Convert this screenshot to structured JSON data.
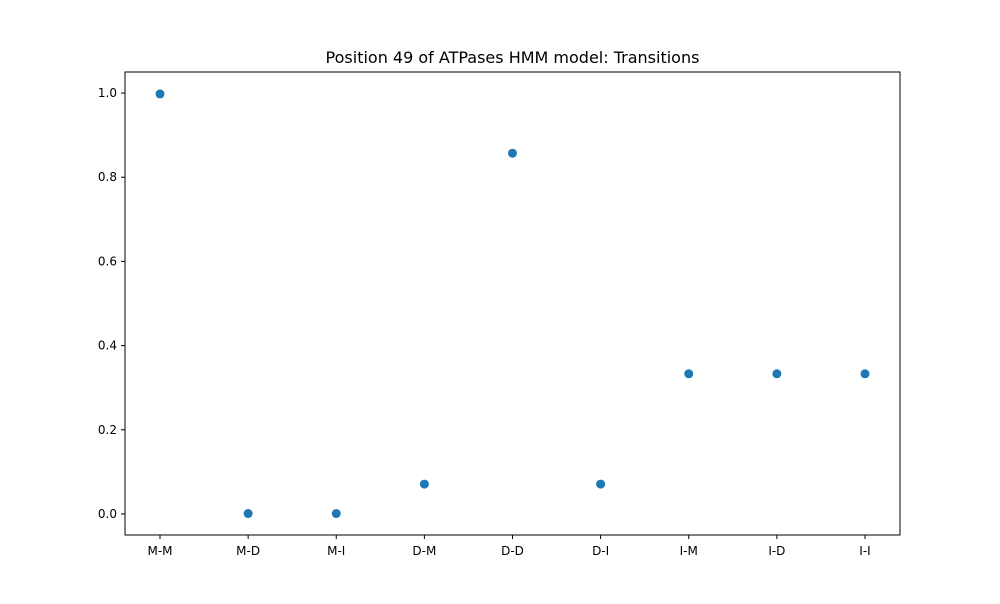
{
  "chart_data": {
    "type": "scatter",
    "title": "Position 49 of ATPases HMM model: Transitions",
    "xlabel": "",
    "ylabel": "",
    "categories": [
      "M-M",
      "M-D",
      "M-I",
      "D-M",
      "D-D",
      "D-I",
      "I-M",
      "I-D",
      "I-I"
    ],
    "values": [
      0.998,
      0.001,
      0.001,
      0.071,
      0.857,
      0.071,
      0.333,
      0.333,
      0.333
    ],
    "ylim": [
      -0.05,
      1.05
    ],
    "yticks": [
      0.0,
      0.2,
      0.4,
      0.6,
      0.8,
      1.0
    ],
    "ytick_labels": [
      "0.0",
      "0.2",
      "0.4",
      "0.6",
      "0.8",
      "1.0"
    ],
    "grid": false,
    "legend": "none",
    "marker_color": "#1f77b4"
  }
}
